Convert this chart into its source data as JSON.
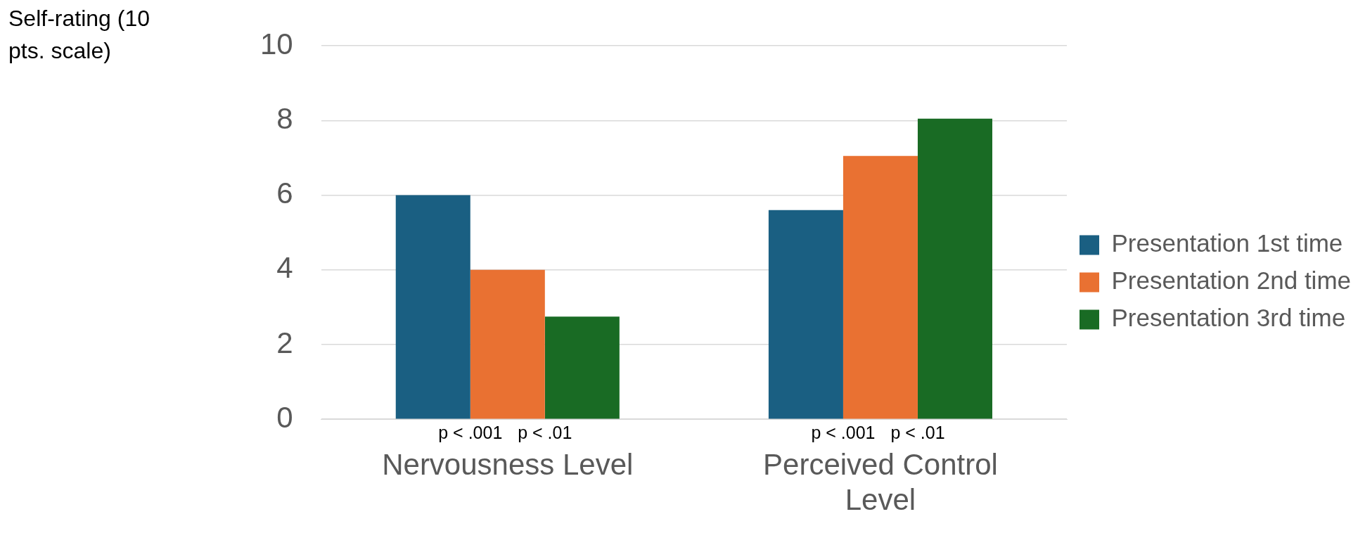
{
  "chart_data": {
    "type": "bar",
    "ylabel": "Self-rating (10 pts. scale)",
    "categories": [
      "Nervousness Level",
      "Perceived Control Level"
    ],
    "series": [
      {
        "name": "Presentation 1st time",
        "color": "#1a5f82",
        "values": [
          6,
          5.6
        ]
      },
      {
        "name": "Presentation 2nd time",
        "color": "#e97132",
        "values": [
          4,
          7.05
        ]
      },
      {
        "name": "Presentation 3rd time",
        "color": "#196b24",
        "values": [
          2.75,
          8.05
        ]
      }
    ],
    "ylim": [
      0,
      10
    ],
    "yticks": [
      0,
      2,
      4,
      6,
      8,
      10
    ],
    "grid": "y",
    "legend": "right",
    "annotations": [
      "p < .001",
      "p < .01",
      "p < .001",
      "p < .01"
    ]
  }
}
